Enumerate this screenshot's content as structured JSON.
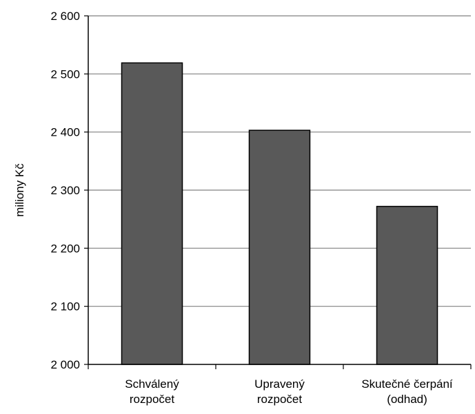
{
  "chart_data": {
    "type": "bar",
    "categories": [
      [
        "Schválený",
        "rozpočet"
      ],
      [
        "Upravený",
        "rozpočet"
      ],
      [
        "Skutečné čerpání",
        "(odhad)"
      ]
    ],
    "values": [
      2519,
      2403,
      2272
    ],
    "ylabel": "miliony Kč",
    "ylim": [
      2000,
      2600
    ],
    "yticks": [
      2000,
      2100,
      2200,
      2300,
      2400,
      2500,
      2600
    ],
    "ytick_labels": [
      "2 000",
      "2 100",
      "2 200",
      "2 300",
      "2 400",
      "2 500",
      "2 600"
    ],
    "grid": true,
    "legend": "none",
    "colors": {
      "bar_fill": "#595959",
      "bar_stroke": "#000000",
      "grid": "#808080",
      "axis": "#000000"
    }
  }
}
